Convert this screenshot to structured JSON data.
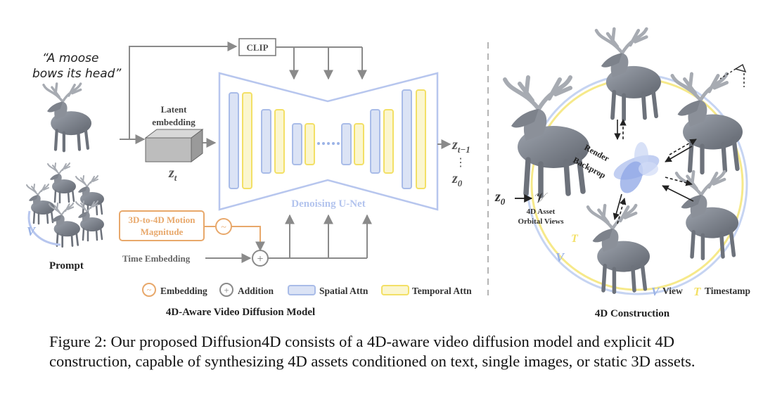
{
  "left_panel": {
    "prompt_quote_line1": "“A moose",
    "prompt_quote_line2": "bows its head”",
    "prompt_label": "Prompt",
    "clip_label": "CLIP",
    "latent_line1": "Latent",
    "latent_line2": "embedding",
    "zt_main": "z",
    "zt_sub": "t",
    "unet_label": "Denoising U-Net",
    "out_z_main": "z",
    "out_z_sub": "t−1",
    "out_z0_main": "z",
    "out_z0_sub": "0",
    "motion_line1": "3D-to-4D Motion",
    "motion_line2": "Magnitude",
    "time_embedding": "Time Embedding",
    "add_symbol": "+",
    "tilde_symbol": "~",
    "v_symbol": "V",
    "title": "4D-Aware Video Diffusion Model",
    "legend": {
      "embedding": "Embedding",
      "addition": "Addition",
      "spatial": "Spatial Attn",
      "temporal": "Temporal Attn"
    }
  },
  "right_panel": {
    "render": "Render",
    "backprop": "Backprop",
    "z0v_main": "z",
    "z0v_sub": "0",
    "z0v_target": "𝒱",
    "asset_line1": "4D Asset",
    "asset_line2": "Orbital Views",
    "legend_v_symbol": "V",
    "legend_v": "View",
    "legend_t_symbol": "T",
    "legend_t": "Timestamp",
    "title": "4D Construction"
  },
  "caption": "Figure 2: Our proposed Diffusion4D consists of a 4D-aware video diffusion model and explicit 4D construction, capable of synthesizing 4D assets conditioned on text, single images, or static 3D assets.",
  "colors": {
    "spatial_fill": "#dbe3f5",
    "spatial_stroke": "#a9bce8",
    "temporal_fill": "#fbf6cf",
    "temporal_stroke": "#f3e066",
    "motion": "#e8a86b",
    "arrow_gray": "#8a8a8a",
    "unet_outline": "#b7c6ee"
  }
}
